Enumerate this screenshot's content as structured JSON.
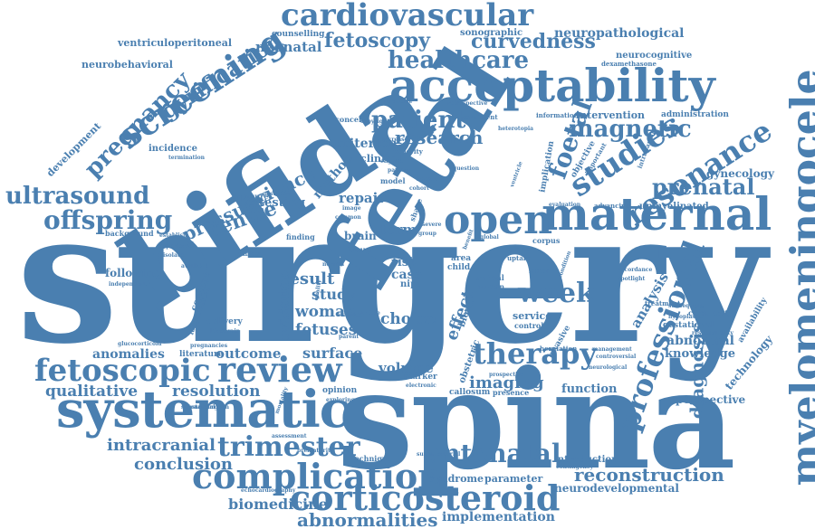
{
  "words": {
    "surgery": "surgery",
    "spina": "spina",
    "bifida": "bifida",
    "fetal": "fetal",
    "acceptability": "acceptability",
    "myelomeningocele": "myelomeningocele",
    "systematic": "systematic",
    "maternal": "maternal",
    "open": "open",
    "cardiovascular": "cardiovascular",
    "complication": "complication",
    "corticosteroid": "corticosteroid",
    "fetoscopic": "fetoscopic",
    "review": "review",
    "screening": "screening",
    "healthcare": "healthcare",
    "ultrasound": "ultrasound",
    "offspring": "offspring",
    "therapy": "therapy",
    "studies": "studies",
    "resonance": "resonance",
    "magnetic": "magnetic",
    "professional": "professional",
    "trimester": "trimester",
    "antenatal": "antenatal",
    "week": "week",
    "pregnancy": "pregnancy",
    "gyrification": "gyrification",
    "fetoscopy": "fetoscopy",
    "curvedness": "curvedness",
    "patient": "patient",
    "research": "research",
    "foetal": "foetal",
    "prenatal": "prenatal",
    "centre": "centre",
    "pressure": "pressure",
    "science": "science",
    "abnormalities": "abnormalities",
    "implementation": "implementation",
    "reconstruction": "reconstruction",
    "conclusion": "conclusion",
    "intracranial": "intracranial",
    "qualitative": "qualitative",
    "resolution": "resolution",
    "anomalies": "anomalies",
    "outcome": "outcome",
    "surface": "surface",
    "fetuses": "fetuses",
    "woman": "woman",
    "result": "result",
    "study": "study",
    "evidence": "evidence",
    "parental": "parental",
    "imaging": "imaging",
    "volume": "volume",
    "choice": "choice",
    "effect": "effect",
    "diagnosis": "diagnosis",
    "analysis": "analysis",
    "knowledge": "knowledge",
    "abnormal": "abnormal",
    "perspective": "perspective",
    "technology": "technology",
    "function": "function",
    "neurodevelopmental": "neurodevelopmental",
    "introduction": "introduction",
    "parameter": "parameter",
    "syndrome": "syndrome",
    "biomedicine": "biomedicine",
    "neuropathological": "neuropathological",
    "sonographic": "sonographic",
    "ventriculoperitoneal": "ventriculoperitoneal",
    "neurobehavioral": "neurobehavioral",
    "neonatal": "neonatal",
    "counselling": "counselling",
    "development": "development",
    "incidence": "incidence",
    "term": "term",
    "brain": "brain",
    "risk": "risk",
    "case": "case",
    "repair": "repair",
    "testing": "testing",
    "method": "method",
    "criterion": "criterion",
    "clinical": "clinical",
    "intervention": "intervention",
    "administration": "administration",
    "information": "information",
    "gynecology": "gynecology",
    "unmyelinated": "unmyelinated",
    "advancing": "advancing",
    "neurocognitive": "neurocognitive",
    "dexamethasone": "dexamethasone",
    "following": "following",
    "background": "background",
    "independent": "independent",
    "concept": "concept",
    "longitudinal": "longitudinal",
    "delivery": "delivery",
    "hindbrain": "hindbrain",
    "literature": "literature",
    "pregnancies": "pregnancies",
    "glucocorticoid": "glucocorticoid",
    "neurosurgeon": "neurosurgeon",
    "opinion": "opinion",
    "exploring": "exploring",
    "assessment": "assessment",
    "prematurity": "prematurity",
    "technique": "technique",
    "echocardiography": "echocardiography",
    "supratentorial": "supratentorial",
    "callosum": "callosum",
    "presence": "presence",
    "marker": "marker",
    "service": "service",
    "control": "control",
    "complexity": "complexity",
    "gestational": "gestational",
    "availability": "availability",
    "herniation": "herniation",
    "management": "management",
    "controversial": "controversial",
    "objective": "objective",
    "implication": "implication",
    "concern": "concern",
    "persistent": "persistent",
    "structure": "structure",
    "exposure": "exposure",
    "finding": "finding",
    "human": "human",
    "animal": "animal",
    "child": "child",
    "area": "area",
    "uptake": "uptake",
    "quarter": "quarter",
    "corpus": "corpus",
    "nipt": "nipt",
    "invasive": "invasive",
    "obstetric": "obstetric",
    "blood": "blood",
    "future": "future",
    "model": "model",
    "shape": "shape",
    "majority": "majority",
    "increase": "increase",
    "england": "england",
    "copyright": "copyright",
    "retrospective": "retrospective",
    "termination": "termination",
    "establish": "establish",
    "experience": "experience",
    "isolated": "isolated",
    "number": "number",
    "normal": "normal",
    "quality": "quality",
    "spotlight": "spotlight",
    "accordance": "accordance",
    "hypoplastic": "hypoplastic",
    "subsequent": "subsequent",
    "responsibility": "responsibility",
    "treatment": "treatment",
    "neurological": "neurological",
    "contingency": "contingency",
    "prospective": "prospective",
    "article": "article",
    "evaluate": "evaluate",
    "parent": "parent",
    "important": "important",
    "intrapartum": "intrapartum",
    "ventricle": "ventricle",
    "image": "image",
    "common": "common",
    "condition": "condition",
    "lesion": "lesion",
    "global": "global",
    "benefit": "benefit",
    "evaluation": "evaluation",
    "heterotopia": "heterotopia",
    "available": "available",
    "substantial": "substantial",
    "mortality": "mortality",
    "gestation": "gestation",
    "electronic": "electronic",
    "impact": "impact",
    "cohort": "cohort",
    "group": "group",
    "severe": "severe",
    "pattern": "pattern",
    "question": "question"
  }
}
